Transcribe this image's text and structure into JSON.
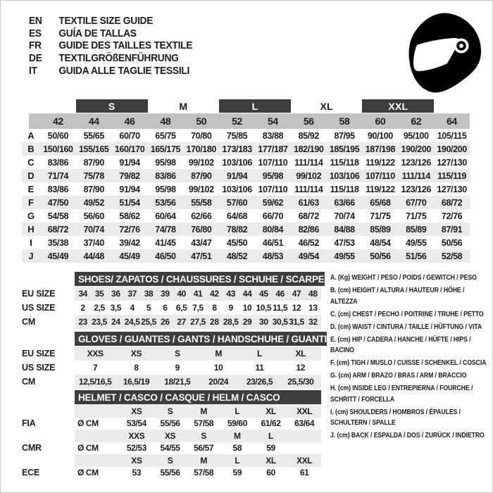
{
  "colors": {
    "band_dark": "#3d3d3d",
    "number_strip": "#c2c2c2",
    "row_alt": "#eaeaea",
    "text": "#1b1b1b",
    "helmet": "#000000"
  },
  "header": {
    "languages": [
      {
        "code": "EN",
        "title": "TEXTILE SIZE GUIDE"
      },
      {
        "code": "ES",
        "title": "GUÍA DE TALLAS"
      },
      {
        "code": "FR",
        "title": "GUIDE DES TAILLES TEXTILE"
      },
      {
        "code": "DE",
        "title": "TEXTILGRÖßENFÜHRUNG"
      },
      {
        "code": "IT",
        "title": "GUIDA ALLE TAGLIE TESSILI"
      }
    ],
    "icon": "full-face-racing-helmet"
  },
  "textile_table": {
    "bands": [
      {
        "label": "S",
        "dark": true,
        "covers": [
          "44",
          "46"
        ]
      },
      {
        "label": "M",
        "dark": false,
        "covers": [
          "48",
          "50"
        ]
      },
      {
        "label": "L",
        "dark": true,
        "covers": [
          "52",
          "54"
        ]
      },
      {
        "label": "XL",
        "dark": false,
        "covers": [
          "56",
          "58"
        ]
      },
      {
        "label": "XXL",
        "dark": true,
        "covers": [
          "60",
          "62"
        ]
      }
    ],
    "sizes": [
      "42",
      "44",
      "46",
      "48",
      "50",
      "52",
      "54",
      "56",
      "58",
      "60",
      "62",
      "64"
    ],
    "rows": [
      {
        "label": "A",
        "values": [
          "50/60",
          "55/65",
          "60/70",
          "65/75",
          "70/80",
          "75/85",
          "83/88",
          "85/92",
          "87/95",
          "90/100",
          "95/100",
          "105/115"
        ]
      },
      {
        "label": "B",
        "values": [
          "150/160",
          "155/165",
          "160/170",
          "165/175",
          "170/180",
          "173/183",
          "177/187",
          "182/190",
          "185/195",
          "187/198",
          "190/200",
          "190/200"
        ]
      },
      {
        "label": "C",
        "values": [
          "83/86",
          "87/90",
          "91/94",
          "95/98",
          "99/102",
          "103/106",
          "107/110",
          "111/114",
          "115/118",
          "119/122",
          "123/126",
          "127/130"
        ]
      },
      {
        "label": "D",
        "values": [
          "71/74",
          "75/78",
          "79/82",
          "83/86",
          "87/90",
          "91/94",
          "95/98",
          "99/102",
          "103/106",
          "107/110",
          "111/114",
          "115/119"
        ]
      },
      {
        "label": "E",
        "values": [
          "83/86",
          "87/90",
          "91/94",
          "95/98",
          "99/102",
          "103/106",
          "107/110",
          "111/114",
          "115/118",
          "119/122",
          "123/126",
          "127/130"
        ]
      },
      {
        "label": "F",
        "values": [
          "47/50",
          "49/52",
          "51/54",
          "53/56",
          "55/58",
          "57/60",
          "59/62",
          "61/63",
          "63/66",
          "65/68",
          "67/70",
          "68/72"
        ]
      },
      {
        "label": "G",
        "values": [
          "54/58",
          "56/60",
          "58/62",
          "60/64",
          "62/66",
          "64/68",
          "66/70",
          "68/72",
          "70/74",
          "71/75",
          "71/75",
          "72/76"
        ]
      },
      {
        "label": "H",
        "values": [
          "68/72",
          "70/74",
          "72/76",
          "74/78",
          "76/80",
          "78/82",
          "80/84",
          "82/86",
          "84/88",
          "85/89",
          "85/89",
          "87/91"
        ]
      },
      {
        "label": "I",
        "values": [
          "35/38",
          "37/40",
          "39/42",
          "41/45",
          "43/47",
          "45/50",
          "46/51",
          "46/52",
          "47/53",
          "48/54",
          "49/55",
          "50/56"
        ]
      },
      {
        "label": "J",
        "values": [
          "45/49",
          "44/48",
          "45/49",
          "46/50",
          "47/51",
          "48/52",
          "48/53",
          "49/54",
          "49/55",
          "50/56",
          "51/56",
          "52/58"
        ]
      }
    ]
  },
  "shoes_table": {
    "title": "SHOES/ ZAPATOS / CHAUSSURES / SCHUHE / SCARPE",
    "rows": [
      {
        "label": "EU SIZE",
        "shaded": true,
        "values": [
          "34",
          "35",
          "36",
          "37",
          "38",
          "39",
          "40",
          "41",
          "42",
          "43",
          "44",
          "45",
          "46",
          "47",
          "48"
        ]
      },
      {
        "label": "US SIZE",
        "shaded": false,
        "values": [
          "2",
          "2,5",
          "3,5",
          "4",
          "5",
          "6",
          "6,5",
          "7,5",
          "8",
          "9",
          "10",
          "10,5",
          "11,5",
          "12",
          "13"
        ]
      },
      {
        "label": "CM",
        "shaded": true,
        "values": [
          "23",
          "23,5",
          "24",
          "24,5",
          "25,5",
          "26",
          "27",
          "27,5",
          "28",
          "28,5",
          "29",
          "30",
          "30,5",
          "31,5",
          "32"
        ]
      }
    ]
  },
  "gloves_table": {
    "title": "GLOVES / GUANTES / GANTS / HANDSCHUHE / GUANTI",
    "rows": [
      {
        "label": "EU SIZE",
        "shaded": true,
        "values": [
          "XXS",
          "XS",
          "S",
          "M",
          "L",
          "XL"
        ]
      },
      {
        "label": "US SIZE",
        "shaded": false,
        "values": [
          "7",
          "8",
          "9",
          "10",
          "11",
          "12"
        ]
      },
      {
        "label": "CM",
        "shaded": true,
        "values": [
          "12,5/16,5",
          "16,5/19",
          "18/21,5",
          "20/24",
          "23/26,5",
          "25,5/30"
        ]
      }
    ]
  },
  "helmet_table": {
    "title": "HELMET / CASCO / CASQUE / HELM / CASCO",
    "diameter_label": "Ø CM",
    "standards": [
      {
        "name": "FIA",
        "sizes": [
          "XS",
          "S",
          "M",
          "L",
          "XL",
          "XXL"
        ],
        "values": [
          "53/54",
          "55/56",
          "57/58",
          "59/60",
          "61/62",
          "63/64"
        ]
      },
      {
        "name": "CMR",
        "sizes": [
          "XXS",
          "XS",
          "S",
          "M",
          "L",
          ""
        ],
        "values": [
          "52/53",
          "54/55",
          "56/57",
          "58",
          "59",
          ""
        ]
      },
      {
        "name": "ECE",
        "sizes": [
          "XS",
          "S",
          "M",
          "L",
          "XL",
          "XXL"
        ],
        "values": [
          "53",
          "55/56",
          "57/58",
          "59",
          "60",
          "61"
        ]
      }
    ]
  },
  "legend": {
    "items": [
      "A. (Kg) WEIGHT / PESO / POIDS / GEWITCH / PESO",
      "B. (cm) HEIGHT / ALTURA / HAUTEUR / HÖHE / ALTEZZA",
      "C. (cm) CHEST / PECHO / POITRINE / TRUHE / PETTO",
      "D. (cm) WAIST / CINTURA / TAILLE / HÜFTUNG / VITA",
      "E. (cm) HIP / CADERA / HANCHE / HÜFTE / HIPS / BACINO",
      "F. (cm) TIGH / MUSLO / CUISSE / SCHENKEL / COSCIA",
      "G. (cm) ARM / BRAZO / BRAS / ARM / BRACCIO",
      "H. (cm) INSIDE LEG / ENTREPIERNA / FOURCHE / SCHRITT / FORCELLA",
      "I. (cm) SHOULDERS / HOMBROS / ÉPAULES / SCHULTERN / SPALLE",
      "J. (cm) BACK / ESPALDA / DOS / ZURÜCK / INDIETRO"
    ]
  }
}
